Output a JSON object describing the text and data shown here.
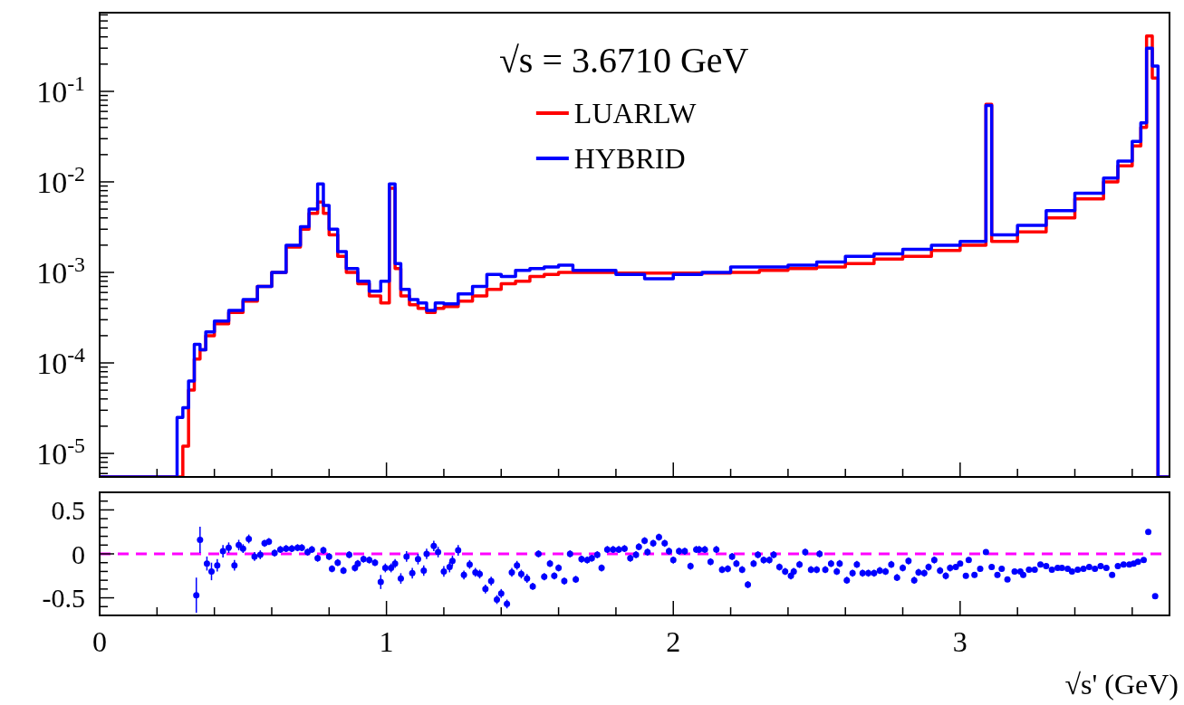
{
  "chart_data": [
    {
      "type": "histogram",
      "title": "√s = 3.6710 GeV",
      "log": "y",
      "legend": "top",
      "tick_labels": "y",
      "grid": false,
      "bins": [
        0,
        0.27,
        0.29,
        0.31,
        0.33,
        0.35,
        0.37,
        0.4,
        0.45,
        0.5,
        0.55,
        0.6,
        0.65,
        0.7,
        0.73,
        0.76,
        0.78,
        0.8,
        0.83,
        0.86,
        0.9,
        0.94,
        0.98,
        1.01,
        1.03,
        1.05,
        1.08,
        1.11,
        1.14,
        1.17,
        1.2,
        1.25,
        1.3,
        1.35,
        1.4,
        1.45,
        1.5,
        1.55,
        1.6,
        1.65,
        1.7,
        1.8,
        1.9,
        2.0,
        2.1,
        2.2,
        2.3,
        2.4,
        2.5,
        2.6,
        2.7,
        2.8,
        2.9,
        3.0,
        3.09,
        3.11,
        3.2,
        3.3,
        3.4,
        3.5,
        3.55,
        3.6,
        3.63,
        3.65,
        3.67,
        3.69,
        3.73
      ],
      "series": [
        {
          "name": "LUARLW",
          "color": "#ff0000",
          "values": [
            null,
            null,
            1.2e-05,
            5e-05,
            0.00011,
            0.00014,
            0.0002,
            0.00027,
            0.00036,
            0.00048,
            0.0007,
            0.001,
            0.0019,
            0.003,
            0.0045,
            0.006,
            0.0045,
            0.0026,
            0.0015,
            0.001,
            0.00075,
            0.00055,
            0.00046,
            0.0085,
            0.0011,
            0.00055,
            0.00044,
            0.0004,
            0.00036,
            0.0004,
            0.00042,
            0.00048,
            0.00055,
            0.00065,
            0.00075,
            0.0008,
            0.0009,
            0.00095,
            0.001,
            0.001,
            0.001,
            0.00098,
            0.00098,
            0.00098,
            0.00098,
            0.001,
            0.00105,
            0.0011,
            0.00115,
            0.00125,
            0.0014,
            0.0015,
            0.00175,
            0.002,
            0.072,
            0.0022,
            0.0028,
            0.004,
            0.0065,
            0.01,
            0.015,
            0.025,
            0.04,
            0.41,
            0.14,
            null
          ]
        },
        {
          "name": "HYBRID",
          "color": "#0000ff",
          "values": [
            null,
            2.5e-05,
            3.2e-05,
            6.3e-05,
            0.00016,
            0.00014,
            0.00022,
            0.00029,
            0.00038,
            0.0005,
            0.0007,
            0.001,
            0.002,
            0.0032,
            0.005,
            0.0095,
            0.0055,
            0.003,
            0.0017,
            0.0011,
            0.0008,
            0.00062,
            0.0008,
            0.0095,
            0.00125,
            0.00065,
            0.0005,
            0.00046,
            0.00038,
            0.00046,
            0.00045,
            0.00058,
            0.0007,
            0.00095,
            0.0009,
            0.00105,
            0.0011,
            0.00115,
            0.0012,
            0.00105,
            0.00105,
            0.00095,
            0.00085,
            0.00095,
            0.001,
            0.00115,
            0.00115,
            0.0012,
            0.0013,
            0.0015,
            0.0016,
            0.0018,
            0.002,
            0.0022,
            0.07,
            0.0026,
            0.0033,
            0.0048,
            0.0075,
            0.011,
            0.017,
            0.028,
            0.045,
            0.3,
            0.19,
            null
          ]
        }
      ],
      "xlim": [
        0,
        3.73
      ],
      "xticks": [
        0,
        {
          "value": 0.2,
          "label": null
        },
        {
          "value": 0.4,
          "label": null
        },
        {
          "value": 0.6,
          "label": null
        },
        {
          "value": 0.8,
          "label": null
        },
        1,
        {
          "value": 1.2,
          "label": null
        },
        {
          "value": 1.4,
          "label": null
        },
        {
          "value": 1.6,
          "label": null
        },
        {
          "value": 1.8,
          "label": null
        },
        2,
        {
          "value": 2.2,
          "label": null
        },
        {
          "value": 2.4,
          "label": null
        },
        {
          "value": 2.6,
          "label": null
        },
        {
          "value": 2.8,
          "label": null
        },
        3,
        {
          "value": 3.2,
          "label": null
        },
        {
          "value": 3.4,
          "label": null
        },
        {
          "value": 3.6,
          "label": null
        }
      ],
      "ylim": [
        5.5e-06,
        0.74
      ],
      "yticks": [
        {
          "value": 6e-06,
          "label": null
        },
        {
          "value": 7e-06,
          "label": null
        },
        {
          "value": 8e-06,
          "label": null
        },
        {
          "value": 9e-06,
          "label": null
        },
        {
          "value": 1e-05,
          "label": "10$^{-5}$"
        },
        {
          "value": 2e-05,
          "label": null
        },
        {
          "value": 3e-05,
          "label": null
        },
        {
          "value": 4e-05,
          "label": null
        },
        {
          "value": 5e-05,
          "label": null
        },
        {
          "value": 6e-05,
          "label": null
        },
        {
          "value": 7e-05,
          "label": null
        },
        {
          "value": 8e-05,
          "label": null
        },
        {
          "value": 9e-05,
          "label": null
        },
        {
          "value": 0.0001,
          "label": "10$^{-4}$"
        },
        {
          "value": 0.0002,
          "label": null
        },
        {
          "value": 0.0003,
          "label": null
        },
        {
          "value": 0.0004,
          "label": null
        },
        {
          "value": 0.0005,
          "label": null
        },
        {
          "value": 0.0006,
          "label": null
        },
        {
          "value": 0.0007,
          "label": null
        },
        {
          "value": 0.0008,
          "label": null
        },
        {
          "value": 0.0009,
          "label": null
        },
        {
          "value": 0.001,
          "label": "10$^{-3}$"
        },
        {
          "value": 0.002,
          "label": null
        },
        {
          "value": 0.003,
          "label": null
        },
        {
          "value": 0.004,
          "label": null
        },
        {
          "value": 0.005,
          "label": null
        },
        {
          "value": 0.006,
          "label": null
        },
        {
          "value": 0.007,
          "label": null
        },
        {
          "value": 0.008,
          "label": null
        },
        {
          "value": 0.009,
          "label": null
        },
        {
          "value": 0.01,
          "label": "10$^{-2}$"
        },
        {
          "value": 0.02,
          "label": null
        },
        {
          "value": 0.03,
          "label": null
        },
        {
          "value": 0.04,
          "label": null
        },
        {
          "value": 0.05,
          "label": null
        },
        {
          "value": 0.06,
          "label": null
        },
        {
          "value": 0.07,
          "label": null
        },
        {
          "value": 0.08,
          "label": null
        },
        {
          "value": 0.09,
          "label": null
        },
        {
          "value": 0.1,
          "label": "10$^{-1}$"
        },
        {
          "value": 0.2,
          "label": null
        },
        {
          "value": 0.3,
          "label": null
        },
        {
          "value": 0.4,
          "label": null
        },
        {
          "value": 0.5,
          "label": null
        },
        {
          "value": 0.6,
          "label": null
        },
        {
          "value": 0.7,
          "label": null
        }
      ]
    },
    {
      "type": "scatter",
      "marker": "circle",
      "color": "#0000ff",
      "xlabel": "√s' (GeV)",
      "grid": false,
      "x": [
        0.337,
        0.35,
        0.374,
        0.39,
        0.41,
        0.43,
        0.45,
        0.47,
        0.485,
        0.5,
        0.52,
        0.54,
        0.56,
        0.575,
        0.59,
        0.61,
        0.63,
        0.65,
        0.67,
        0.69,
        0.705,
        0.725,
        0.74,
        0.76,
        0.78,
        0.8,
        0.81,
        0.83,
        0.85,
        0.87,
        0.89,
        0.9,
        0.92,
        0.94,
        0.96,
        0.98,
        0.996,
        1.016,
        1.03,
        1.05,
        1.07,
        1.09,
        1.11,
        1.13,
        1.14,
        1.165,
        1.18,
        1.2,
        1.22,
        1.23,
        1.25,
        1.27,
        1.29,
        1.31,
        1.325,
        1.345,
        1.365,
        1.385,
        1.4,
        1.42,
        1.437,
        1.455,
        1.47,
        1.49,
        1.51,
        1.53,
        1.55,
        1.57,
        1.585,
        1.6,
        1.62,
        1.64,
        1.66,
        1.68,
        1.7,
        1.716,
        1.735,
        1.75,
        1.77,
        1.79,
        1.81,
        1.83,
        1.85,
        1.87,
        1.88,
        1.9,
        1.91,
        1.93,
        1.95,
        1.97,
        1.985,
        2.0,
        2.02,
        2.04,
        2.06,
        2.08,
        2.09,
        2.11,
        2.13,
        2.15,
        2.17,
        2.19,
        2.205,
        2.22,
        2.24,
        2.26,
        2.28,
        2.295,
        2.315,
        2.335,
        2.35,
        2.37,
        2.39,
        2.41,
        2.42,
        2.44,
        2.46,
        2.48,
        2.5,
        2.51,
        2.53,
        2.55,
        2.57,
        2.58,
        2.605,
        2.625,
        2.64,
        2.66,
        2.68,
        2.7,
        2.72,
        2.74,
        2.76,
        2.78,
        2.8,
        2.82,
        2.84,
        2.855,
        2.875,
        2.89,
        2.91,
        2.93,
        2.95,
        2.965,
        2.985,
        3.0,
        3.02,
        3.03,
        3.05,
        3.07,
        3.09,
        3.11,
        3.13,
        3.145,
        3.165,
        3.19,
        3.21,
        3.22,
        3.24,
        3.26,
        3.28,
        3.3,
        3.32,
        3.34,
        3.355,
        3.375,
        3.39,
        3.41,
        3.43,
        3.45,
        3.47,
        3.49,
        3.51,
        3.53,
        3.55,
        3.57,
        3.59,
        3.605,
        3.62,
        3.64,
        3.656,
        3.68
      ],
      "values": [
        -0.47,
        0.16,
        -0.11,
        -0.2,
        -0.13,
        0.03,
        0.07,
        -0.13,
        0.1,
        0.06,
        0.17,
        -0.03,
        -0.01,
        0.12,
        0.14,
        0.01,
        0.05,
        0.06,
        0.06,
        0.07,
        0.07,
        0.02,
        0.05,
        -0.05,
        0.04,
        -0.03,
        -0.17,
        -0.1,
        -0.19,
        -0.01,
        -0.16,
        -0.11,
        -0.06,
        -0.07,
        -0.1,
        -0.32,
        -0.16,
        -0.16,
        -0.11,
        -0.28,
        -0.03,
        -0.22,
        -0.06,
        -0.19,
        0,
        0.09,
        0.02,
        -0.2,
        -0.15,
        -0.08,
        0.04,
        -0.24,
        -0.12,
        -0.21,
        -0.23,
        -0.4,
        -0.31,
        -0.52,
        -0.45,
        -0.57,
        -0.21,
        -0.13,
        -0.23,
        -0.28,
        -0.37,
        0,
        -0.26,
        -0.11,
        -0.25,
        -0.16,
        -0.31,
        0,
        -0.29,
        -0.06,
        -0.07,
        -0.05,
        -0.01,
        -0.16,
        0.05,
        0.05,
        0.05,
        0.06,
        -0.05,
        -0.01,
        0.08,
        0.15,
        0.02,
        0.12,
        0.19,
        0.12,
        0.03,
        -0.07,
        0.03,
        0.03,
        -0.14,
        0.05,
        0.05,
        0.05,
        -0.09,
        0.05,
        -0.18,
        -0.17,
        -0.03,
        -0.11,
        -0.18,
        -0.35,
        -0.11,
        -0.01,
        -0.07,
        -0.07,
        -0.01,
        -0.15,
        -0.2,
        -0.25,
        -0.2,
        -0.12,
        0.02,
        -0.18,
        -0.18,
        0,
        -0.18,
        -0.11,
        -0.2,
        -0.11,
        -0.3,
        -0.22,
        -0.12,
        -0.22,
        -0.22,
        -0.22,
        -0.19,
        -0.2,
        -0.12,
        -0.27,
        -0.16,
        -0.08,
        -0.3,
        -0.21,
        -0.22,
        -0.15,
        -0.07,
        -0.19,
        -0.25,
        -0.16,
        -0.15,
        -0.11,
        -0.25,
        -0.07,
        -0.24,
        -0.17,
        0.02,
        -0.15,
        -0.24,
        -0.17,
        -0.29,
        -0.2,
        -0.2,
        -0.24,
        -0.18,
        -0.18,
        -0.12,
        -0.14,
        -0.18,
        -0.16,
        -0.16,
        -0.17,
        -0.2,
        -0.18,
        -0.17,
        -0.15,
        -0.17,
        -0.14,
        -0.16,
        -0.24,
        -0.14,
        -0.12,
        -0.12,
        -0.11,
        -0.09,
        -0.07,
        0.25,
        -0.48
      ],
      "errors": [
        0.2,
        0.15,
        0.08,
        0.1,
        0.07,
        0.07,
        0.06,
        0.06,
        0.06,
        0.05,
        0.05,
        0.05,
        0.05,
        0.04,
        0.04,
        0.04,
        0.04,
        0.04,
        0.04,
        0.04,
        0.04,
        0.04,
        0.04,
        0.04,
        0.04,
        0.04,
        0.04,
        0.04,
        0.04,
        0.04,
        0.04,
        0.04,
        0.04,
        0.04,
        0.04,
        0.08,
        0.05,
        0.05,
        0.05,
        0.06,
        0.06,
        0.06,
        0.06,
        0.06,
        0.06,
        0.06,
        0.06,
        0.06,
        0.06,
        0.06,
        0.06,
        0.05,
        0.05,
        0.05,
        0.05,
        0.05,
        0.05,
        0.05,
        0.05,
        0.05,
        0.05,
        0.05,
        0.05,
        0.05,
        0.04,
        0.04,
        0.04,
        0.04,
        0.04,
        0.04,
        0.04,
        0.04,
        0.04,
        0.04,
        0.04,
        0.04,
        0.04,
        0.04,
        0.04,
        0.04,
        0.04,
        0.04,
        0.04,
        0.04,
        0.04,
        0.04,
        0.04,
        0.04,
        0.04,
        0.04,
        0.04,
        0.04,
        0.04,
        0.04,
        0.04,
        0.04,
        0.04,
        0.04,
        0.04,
        0.04,
        0.04,
        0.04,
        0.04,
        0.04,
        0.04,
        0.04,
        0.04,
        0.04,
        0.04,
        0.04,
        0.04,
        0.04,
        0.04,
        0.04,
        0.04,
        0.04,
        0.04,
        0.04,
        0.04,
        0.04,
        0.04,
        0.04,
        0.04,
        0.04,
        0.04,
        0.04,
        0.04,
        0.04,
        0.04,
        0.04,
        0.04,
        0.04,
        0.04,
        0.04,
        0.04,
        0.04,
        0.04,
        0.04,
        0.04,
        0.04,
        0.04,
        0.04,
        0.04,
        0.04,
        0.03,
        0.03,
        0.03,
        0.03,
        0.03,
        0.03,
        0.03,
        0.03,
        0.03,
        0.03,
        0.03,
        0.03,
        0.03,
        0.03,
        0.02,
        0.02,
        0.02,
        0.02,
        0.02,
        0.02,
        0.02,
        0.02,
        0.02,
        0.02,
        0.02,
        0.02,
        0.02,
        0.02,
        0.02,
        0.02,
        0.02,
        0.02,
        0.02,
        0.02,
        0.02,
        0.02,
        null,
        null
      ],
      "xlim": [
        0,
        3.73
      ],
      "xticks": [
        0,
        {
          "value": 0.2,
          "label": null
        },
        {
          "value": 0.4,
          "label": null
        },
        {
          "value": 0.6,
          "label": null
        },
        {
          "value": 0.8,
          "label": null
        },
        1,
        {
          "value": 1.2,
          "label": null
        },
        {
          "value": 1.4,
          "label": null
        },
        {
          "value": 1.6,
          "label": null
        },
        {
          "value": 1.8,
          "label": null
        },
        2,
        {
          "value": 2.2,
          "label": null
        },
        {
          "value": 2.4,
          "label": null
        },
        {
          "value": 2.6,
          "label": null
        },
        {
          "value": 2.8,
          "label": null
        },
        3,
        {
          "value": 3.2,
          "label": null
        },
        {
          "value": 3.4,
          "label": null
        },
        {
          "value": 3.6,
          "label": null
        }
      ],
      "ylim": [
        -0.7,
        0.7
      ],
      "yticks": [
        {
          "value": -0.6,
          "label": null
        },
        -0.5,
        {
          "value": -0.4,
          "label": null
        },
        {
          "value": -0.3,
          "label": null
        },
        {
          "value": -0.2,
          "label": null
        },
        {
          "value": -0.1,
          "label": null
        },
        0,
        {
          "value": 0.1,
          "label": null
        },
        {
          "value": 0.2,
          "label": null
        },
        {
          "value": 0.3,
          "label": null
        },
        {
          "value": 0.4,
          "label": null
        },
        0.5,
        {
          "value": 0.6,
          "label": null
        }
      ],
      "ref_lines": [
        {
          "axis": "y",
          "value": 0,
          "color": "#ff00ff",
          "line_style": "dashed"
        }
      ]
    }
  ]
}
